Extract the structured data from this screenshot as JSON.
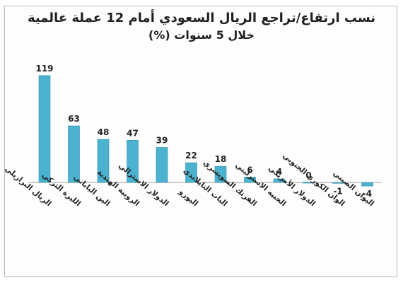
{
  "chart_data": {
    "type": "bar",
    "title": "نسب ارتفاع/تراجع الريال السعودي أمام 12 عملة عالمية",
    "subtitle": "خلال 5 سنوات (%)",
    "categories": [
      "الريال البرازيلي",
      "الليرة التركي",
      "الين الياباني",
      "الروبية الهندية",
      "الدولار الاسترالي",
      "اليورو",
      "البات التايلاندي",
      "الفرنك السويسري",
      "الجنيه الاسترليني",
      "الدولار الأمريكي",
      "الوان الكوري الجنوبي",
      "اليوان الصيني"
    ],
    "values": [
      119,
      63,
      48,
      47,
      39,
      22,
      18,
      6,
      4,
      0,
      -1,
      -4
    ],
    "ylim": [
      -4,
      119
    ],
    "grid": false,
    "legend": "none",
    "bar_color": "#4bb3cf",
    "bar_stroke": "#2f8fae",
    "axis_color": "#9a9a9a"
  }
}
